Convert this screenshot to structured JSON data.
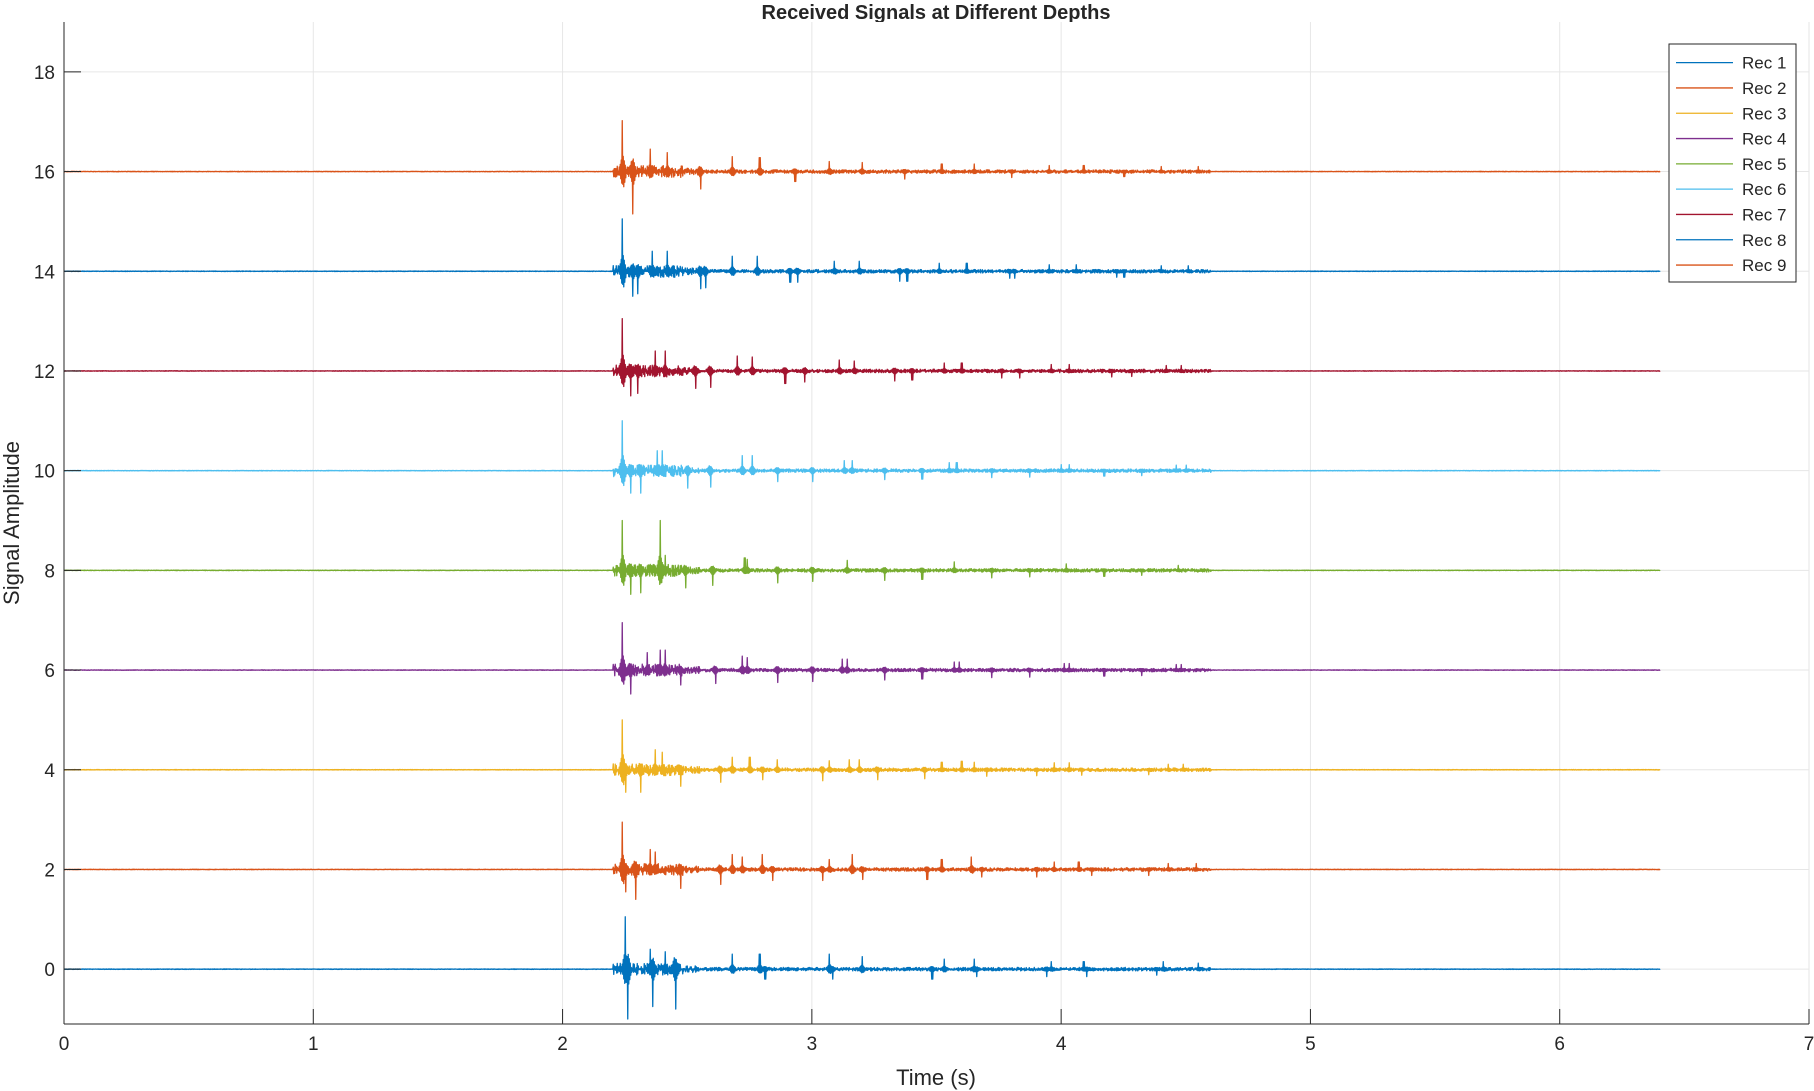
{
  "chart_data": {
    "type": "line",
    "title": "Received Signals at Different Depths",
    "xlabel": "Time (s)",
    "ylabel": "Signal Amplitude",
    "xlim": [
      0,
      7
    ],
    "ylim": [
      -1.1,
      19
    ],
    "xticks": [
      0,
      1,
      2,
      3,
      4,
      5,
      6,
      7
    ],
    "xtick_labels": [
      "0",
      "1",
      "2",
      "3",
      "4",
      "5",
      "6",
      "7"
    ],
    "yticks": [
      0,
      2,
      4,
      6,
      8,
      10,
      12,
      14,
      16,
      18
    ],
    "ytick_labels": [
      "0",
      "2",
      "4",
      "6",
      "8",
      "10",
      "12",
      "14",
      "16",
      "18"
    ],
    "grid": true,
    "legend_position": "top-right",
    "signal_start": 0,
    "signal_end": 6.4,
    "onset": 2.23,
    "series": [
      {
        "name": "Rec 1",
        "color": "#0072BD",
        "offset": 0,
        "pulses": [
          [
            2.25,
            1.05
          ],
          [
            2.26,
            -1.0
          ],
          [
            2.35,
            0.4
          ],
          [
            2.36,
            -0.75
          ],
          [
            2.41,
            0.35
          ],
          [
            2.45,
            -0.8
          ],
          [
            2.68,
            0.3
          ],
          [
            2.79,
            0.3
          ],
          [
            2.81,
            -0.2
          ],
          [
            3.07,
            0.3
          ],
          [
            3.08,
            -0.2
          ],
          [
            3.2,
            0.25
          ],
          [
            3.48,
            -0.2
          ],
          [
            3.53,
            0.2
          ],
          [
            3.65,
            0.2
          ],
          [
            3.66,
            -0.15
          ],
          [
            3.94,
            -0.15
          ],
          [
            3.96,
            0.15
          ],
          [
            4.09,
            0.15
          ],
          [
            4.1,
            -0.15
          ],
          [
            4.38,
            -0.12
          ],
          [
            4.41,
            0.15
          ],
          [
            4.55,
            0.12
          ]
        ]
      },
      {
        "name": "Rec 2",
        "color": "#D95319",
        "offset": 2,
        "pulses": [
          [
            2.24,
            0.95
          ],
          [
            2.25,
            -0.45
          ],
          [
            2.29,
            -0.6
          ],
          [
            2.35,
            0.4
          ],
          [
            2.37,
            0.35
          ],
          [
            2.47,
            -0.38
          ],
          [
            2.63,
            -0.3
          ],
          [
            2.68,
            0.3
          ],
          [
            2.72,
            0.25
          ],
          [
            2.8,
            0.3
          ],
          [
            2.84,
            -0.22
          ],
          [
            3.04,
            -0.22
          ],
          [
            3.07,
            0.2
          ],
          [
            3.16,
            0.3
          ],
          [
            3.2,
            -0.2
          ],
          [
            3.46,
            -0.2
          ],
          [
            3.52,
            0.2
          ],
          [
            3.64,
            0.25
          ],
          [
            3.68,
            -0.15
          ],
          [
            3.9,
            -0.15
          ],
          [
            3.97,
            0.15
          ],
          [
            4.07,
            0.15
          ],
          [
            4.12,
            -0.12
          ],
          [
            4.35,
            -0.12
          ],
          [
            4.43,
            0.12
          ],
          [
            4.54,
            0.12
          ]
        ]
      },
      {
        "name": "Rec 3",
        "color": "#EDB120",
        "offset": 4,
        "pulses": [
          [
            2.24,
            1.0
          ],
          [
            2.25,
            -0.45
          ],
          [
            2.31,
            -0.45
          ],
          [
            2.37,
            0.4
          ],
          [
            2.4,
            0.35
          ],
          [
            2.47,
            -0.33
          ],
          [
            2.63,
            -0.25
          ],
          [
            2.68,
            0.25
          ],
          [
            2.75,
            0.25
          ],
          [
            2.8,
            -0.2
          ],
          [
            2.86,
            0.2
          ],
          [
            3.04,
            -0.22
          ],
          [
            3.07,
            0.18
          ],
          [
            3.15,
            0.2
          ],
          [
            3.19,
            0.2
          ],
          [
            3.26,
            -0.2
          ],
          [
            3.45,
            -0.18
          ],
          [
            3.52,
            0.15
          ],
          [
            3.6,
            0.17
          ],
          [
            3.65,
            0.15
          ],
          [
            3.7,
            -0.13
          ],
          [
            3.9,
            -0.12
          ],
          [
            3.97,
            0.14
          ],
          [
            4.03,
            0.14
          ],
          [
            4.08,
            -0.11
          ],
          [
            4.35,
            -0.1
          ],
          [
            4.43,
            0.11
          ],
          [
            4.49,
            0.11
          ]
        ]
      },
      {
        "name": "Rec 4",
        "color": "#7E2F8E",
        "offset": 6,
        "pulses": [
          [
            2.24,
            0.95
          ],
          [
            2.27,
            -0.48
          ],
          [
            2.34,
            0.35
          ],
          [
            2.39,
            0.4
          ],
          [
            2.41,
            0.4
          ],
          [
            2.47,
            -0.3
          ],
          [
            2.61,
            -0.27
          ],
          [
            2.72,
            0.28
          ],
          [
            2.74,
            0.25
          ],
          [
            2.86,
            -0.25
          ],
          [
            3.0,
            -0.23
          ],
          [
            3.12,
            0.22
          ],
          [
            3.14,
            0.22
          ],
          [
            3.29,
            -0.2
          ],
          [
            3.44,
            -0.18
          ],
          [
            3.57,
            0.16
          ],
          [
            3.59,
            0.16
          ],
          [
            3.72,
            -0.15
          ],
          [
            3.87,
            -0.14
          ],
          [
            4.01,
            0.13
          ],
          [
            4.03,
            0.13
          ],
          [
            4.17,
            -0.12
          ],
          [
            4.32,
            -0.11
          ],
          [
            4.46,
            0.11
          ],
          [
            4.48,
            0.11
          ]
        ]
      },
      {
        "name": "Rec 5",
        "color": "#77AC30",
        "offset": 8,
        "pulses": [
          [
            2.24,
            1.0
          ],
          [
            2.27,
            -0.48
          ],
          [
            2.31,
            -0.45
          ],
          [
            2.39,
            1.0
          ],
          [
            2.41,
            0.3
          ],
          [
            2.49,
            -0.35
          ],
          [
            2.6,
            -0.3
          ],
          [
            2.73,
            0.25
          ],
          [
            2.74,
            0.22
          ],
          [
            2.86,
            -0.25
          ],
          [
            3.0,
            -0.22
          ],
          [
            3.14,
            0.2
          ],
          [
            3.29,
            -0.2
          ],
          [
            3.44,
            -0.18
          ],
          [
            3.57,
            0.17
          ],
          [
            3.72,
            -0.15
          ],
          [
            3.87,
            -0.13
          ],
          [
            4.02,
            0.13
          ],
          [
            4.17,
            -0.12
          ],
          [
            4.32,
            -0.1
          ],
          [
            4.47,
            0.1
          ]
        ]
      },
      {
        "name": "Rec 6",
        "color": "#4DBEEE",
        "offset": 10,
        "pulses": [
          [
            2.24,
            1.0
          ],
          [
            2.27,
            -0.45
          ],
          [
            2.31,
            -0.45
          ],
          [
            2.38,
            0.4
          ],
          [
            2.4,
            0.4
          ],
          [
            2.5,
            -0.35
          ],
          [
            2.59,
            -0.33
          ],
          [
            2.72,
            0.3
          ],
          [
            2.76,
            0.3
          ],
          [
            2.86,
            -0.22
          ],
          [
            3.0,
            -0.22
          ],
          [
            3.13,
            0.2
          ],
          [
            3.16,
            0.2
          ],
          [
            3.29,
            -0.18
          ],
          [
            3.44,
            -0.17
          ],
          [
            3.55,
            0.16
          ],
          [
            3.58,
            0.16
          ],
          [
            3.72,
            -0.14
          ],
          [
            3.87,
            -0.13
          ],
          [
            4.0,
            0.12
          ],
          [
            4.03,
            0.12
          ],
          [
            4.17,
            -0.11
          ],
          [
            4.32,
            -0.1
          ],
          [
            4.46,
            0.11
          ],
          [
            4.5,
            0.11
          ]
        ]
      },
      {
        "name": "Rec 7",
        "color": "#A2142F",
        "offset": 12,
        "pulses": [
          [
            2.24,
            1.05
          ],
          [
            2.27,
            -0.5
          ],
          [
            2.3,
            -0.45
          ],
          [
            2.37,
            0.4
          ],
          [
            2.41,
            0.4
          ],
          [
            2.53,
            -0.35
          ],
          [
            2.59,
            -0.33
          ],
          [
            2.7,
            0.3
          ],
          [
            2.76,
            0.28
          ],
          [
            2.89,
            -0.25
          ],
          [
            2.97,
            -0.22
          ],
          [
            3.11,
            0.22
          ],
          [
            3.17,
            0.2
          ],
          [
            3.33,
            -0.2
          ],
          [
            3.4,
            -0.18
          ],
          [
            3.53,
            0.16
          ],
          [
            3.6,
            0.16
          ],
          [
            3.76,
            -0.14
          ],
          [
            3.83,
            -0.14
          ],
          [
            3.96,
            0.13
          ],
          [
            4.03,
            0.13
          ],
          [
            4.2,
            -0.12
          ],
          [
            4.28,
            -0.11
          ],
          [
            4.42,
            0.11
          ],
          [
            4.48,
            0.11
          ]
        ]
      },
      {
        "name": "Rec 8",
        "color": "#0072BD",
        "offset": 14,
        "pulses": [
          [
            2.24,
            1.05
          ],
          [
            2.28,
            -0.5
          ],
          [
            2.3,
            -0.45
          ],
          [
            2.36,
            0.4
          ],
          [
            2.42,
            0.4
          ],
          [
            2.55,
            -0.35
          ],
          [
            2.57,
            -0.33
          ],
          [
            2.68,
            0.3
          ],
          [
            2.78,
            0.3
          ],
          [
            2.91,
            -0.22
          ],
          [
            2.94,
            -0.22
          ],
          [
            3.09,
            0.2
          ],
          [
            3.19,
            0.2
          ],
          [
            3.35,
            -0.2
          ],
          [
            3.38,
            -0.2
          ],
          [
            3.51,
            0.16
          ],
          [
            3.62,
            0.16
          ],
          [
            3.79,
            -0.14
          ],
          [
            3.81,
            -0.14
          ],
          [
            3.95,
            0.13
          ],
          [
            4.06,
            0.13
          ],
          [
            4.22,
            -0.12
          ],
          [
            4.25,
            -0.12
          ],
          [
            4.4,
            0.11
          ],
          [
            4.51,
            0.11
          ]
        ]
      },
      {
        "name": "Rec 9",
        "color": "#D95319",
        "offset": 16,
        "pulses": [
          [
            2.24,
            1.02
          ],
          [
            2.28,
            -0.85
          ],
          [
            2.35,
            0.45
          ],
          [
            2.42,
            0.38
          ],
          [
            2.55,
            -0.35
          ],
          [
            2.68,
            0.3
          ],
          [
            2.79,
            0.28
          ],
          [
            2.93,
            -0.2
          ],
          [
            3.07,
            0.2
          ],
          [
            3.2,
            0.18
          ],
          [
            3.37,
            -0.15
          ],
          [
            3.52,
            0.15
          ],
          [
            3.65,
            0.15
          ],
          [
            3.8,
            -0.12
          ],
          [
            3.95,
            0.12
          ],
          [
            4.09,
            0.12
          ],
          [
            4.25,
            -0.1
          ],
          [
            4.4,
            0.1
          ],
          [
            4.55,
            0.1
          ]
        ]
      }
    ]
  }
}
